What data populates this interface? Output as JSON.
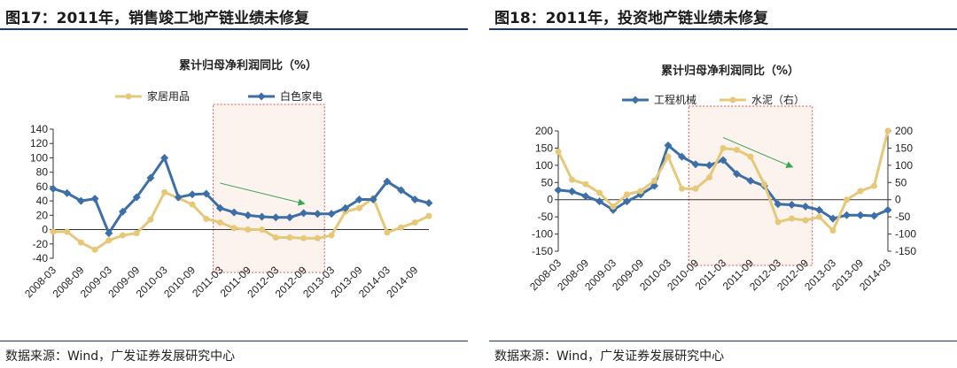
{
  "figures": [
    {
      "title": "图17：2011年，销售竣工地产链业绩未修复",
      "source": "数据来源：Wind，广发证券发展研究中心",
      "chart_data": {
        "type": "line",
        "title": "累计归母净利润同比（%）",
        "x": [
          "2008-03",
          "2008-06",
          "2008-09",
          "2008-12",
          "2009-03",
          "2009-06",
          "2009-09",
          "2009-12",
          "2010-03",
          "2010-06",
          "2010-09",
          "2010-12",
          "2011-03",
          "2011-06",
          "2011-09",
          "2011-12",
          "2012-03",
          "2012-06",
          "2012-09",
          "2012-12",
          "2013-03",
          "2013-06",
          "2013-09",
          "2013-12",
          "2014-03",
          "2014-06",
          "2014-09",
          "2014-12"
        ],
        "xtick_labels": [
          "2008-03",
          "2008-09",
          "2009-03",
          "2009-09",
          "2010-03",
          "2010-09",
          "2011-03",
          "2011-09",
          "2012-03",
          "2012-09",
          "2013-03",
          "2013-09",
          "2014-03",
          "2014-09"
        ],
        "ylim": [
          -40,
          140
        ],
        "yticks": [
          -40,
          -20,
          0,
          20,
          40,
          60,
          80,
          100,
          120,
          140
        ],
        "series": [
          {
            "name": "家居用品",
            "color": "#e6c878",
            "marker": "circle",
            "values": [
              -3,
              -3,
              -18,
              -28,
              -15,
              -8,
              -5,
              14,
              52,
              44,
              35,
              15,
              10,
              2,
              0,
              0,
              -11,
              -11,
              -12,
              -12,
              -8,
              25,
              30,
              44,
              -4,
              3,
              10,
              19
            ]
          },
          {
            "name": "白色家电",
            "color": "#3c6ea7",
            "marker": "diamond",
            "values": [
              57,
              51,
              40,
              43,
              -5,
              25,
              45,
              72,
              100,
              45,
              49,
              50,
              30,
              24,
              20,
              18,
              17,
              17,
              23,
              22,
              22,
              30,
              42,
              42,
              67,
              55,
              42,
              37
            ]
          }
        ],
        "annotation": {
          "shade_from": "2011-03",
          "shade_to": "2012-12",
          "arrow_from": [
            "2011-03",
            50
          ],
          "arrow_to": [
            "2012-09",
            24
          ]
        }
      }
    },
    {
      "title": "图18：2011年，投资地产链业绩未修复",
      "source": "数据来源：Wind，广发证券发展研究中心",
      "chart_data": {
        "type": "line",
        "title": "累计归母净利润同比（%）",
        "x": [
          "2008-03",
          "2008-06",
          "2008-09",
          "2008-12",
          "2009-03",
          "2009-06",
          "2009-09",
          "2009-12",
          "2010-03",
          "2010-06",
          "2010-09",
          "2010-12",
          "2011-03",
          "2011-06",
          "2011-09",
          "2011-12",
          "2012-03",
          "2012-06",
          "2012-09",
          "2012-12",
          "2013-03",
          "2013-06",
          "2013-09",
          "2013-12",
          "2014-03"
        ],
        "xtick_labels": [
          "2008-03",
          "2008-09",
          "2009-03",
          "2009-09",
          "2010-03",
          "2010-09",
          "2011-03",
          "2011-09",
          "2012-03",
          "2012-09",
          "2013-03",
          "2013-09",
          "2014-03"
        ],
        "ylim": [
          -150,
          200
        ],
        "yticks": [
          -150,
          -100,
          -50,
          0,
          50,
          100,
          150,
          200
        ],
        "y2lim": [
          -150,
          200
        ],
        "y2ticks": [
          -150,
          -100,
          -50,
          0,
          50,
          100,
          150,
          200
        ],
        "series": [
          {
            "name": "工程机械",
            "color": "#3c6ea7",
            "marker": "diamond",
            "axis": "left",
            "values": [
              28,
              24,
              10,
              -5,
              -30,
              -5,
              15,
              40,
              158,
              125,
              103,
              100,
              115,
              75,
              55,
              40,
              -13,
              -15,
              -20,
              -30,
              -55,
              -45,
              -45,
              -47,
              -30
            ]
          },
          {
            "name": "水泥（右）",
            "color": "#e6c878",
            "marker": "circle",
            "axis": "right",
            "values": [
              140,
              58,
              45,
              20,
              -20,
              15,
              25,
              55,
              125,
              32,
              32,
              65,
              150,
              145,
              125,
              45,
              -65,
              -55,
              -60,
              -50,
              -90,
              0,
              25,
              40,
              200
            ]
          }
        ],
        "annotation": {
          "shade_from": "2010-09",
          "shade_to": "2012-09",
          "arrow_from": [
            "2011-03",
            150
          ],
          "arrow_to": [
            "2012-06",
            70
          ]
        }
      }
    }
  ]
}
